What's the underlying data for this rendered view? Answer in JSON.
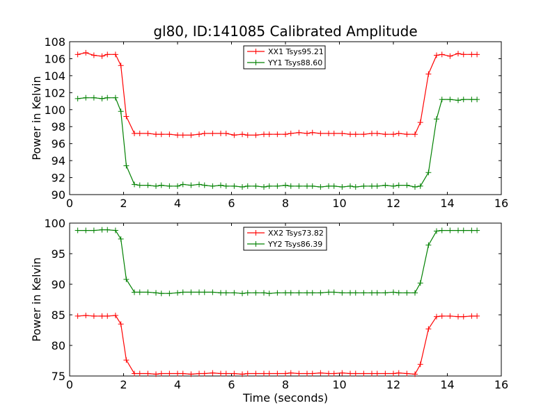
{
  "chart_data": [
    {
      "type": "line",
      "title": "gl80, ID:141085 Calibrated Amplitude",
      "xlabel": "",
      "ylabel": "Power in Kelvin",
      "xlim": [
        0,
        16
      ],
      "ylim": [
        90,
        108
      ],
      "xticks": [
        0,
        2,
        4,
        6,
        8,
        10,
        12,
        14,
        16
      ],
      "yticks": [
        90,
        92,
        94,
        96,
        98,
        100,
        102,
        104,
        106,
        108
      ],
      "legend_position": "top-center",
      "x": [
        0.3,
        0.6,
        0.9,
        1.2,
        1.4,
        1.7,
        1.9,
        2.1,
        2.4,
        2.6,
        2.9,
        3.2,
        3.4,
        3.7,
        4.0,
        4.2,
        4.5,
        4.8,
        5.0,
        5.3,
        5.6,
        5.8,
        6.1,
        6.4,
        6.6,
        6.9,
        7.2,
        7.4,
        7.7,
        8.0,
        8.2,
        8.5,
        8.8,
        9.0,
        9.3,
        9.6,
        9.8,
        10.1,
        10.4,
        10.6,
        10.9,
        11.2,
        11.4,
        11.7,
        12.0,
        12.2,
        12.5,
        12.8,
        13.0,
        13.3,
        13.6,
        13.8,
        14.1,
        14.4,
        14.6,
        14.9,
        15.1
      ],
      "series": [
        {
          "name": "XX1 Tsys95.21",
          "color": "#ff0000",
          "values": [
            106.5,
            106.7,
            106.4,
            106.3,
            106.5,
            106.5,
            105.2,
            99.2,
            97.2,
            97.2,
            97.2,
            97.1,
            97.1,
            97.1,
            97.0,
            97.0,
            97.0,
            97.1,
            97.2,
            97.2,
            97.2,
            97.2,
            97.0,
            97.1,
            97.0,
            97.0,
            97.1,
            97.1,
            97.1,
            97.1,
            97.2,
            97.3,
            97.2,
            97.3,
            97.2,
            97.2,
            97.2,
            97.2,
            97.1,
            97.1,
            97.1,
            97.2,
            97.2,
            97.1,
            97.1,
            97.2,
            97.1,
            97.1,
            98.5,
            104.2,
            106.4,
            106.5,
            106.3,
            106.6,
            106.5,
            106.5,
            106.5
          ]
        },
        {
          "name": "YY1 Tsys88.60",
          "color": "#008000",
          "values": [
            101.3,
            101.4,
            101.4,
            101.3,
            101.4,
            101.4,
            99.8,
            93.4,
            91.2,
            91.1,
            91.1,
            91.0,
            91.1,
            91.0,
            91.0,
            91.2,
            91.1,
            91.2,
            91.1,
            91.0,
            91.1,
            91.0,
            91.0,
            90.9,
            91.0,
            91.0,
            90.9,
            91.0,
            91.0,
            91.1,
            91.0,
            91.0,
            91.0,
            91.0,
            90.9,
            91.0,
            91.0,
            90.9,
            91.0,
            90.9,
            91.0,
            91.0,
            91.0,
            91.1,
            91.0,
            91.1,
            91.1,
            90.9,
            91.0,
            92.6,
            98.9,
            101.2,
            101.2,
            101.1,
            101.2,
            101.2,
            101.2
          ]
        }
      ]
    },
    {
      "type": "line",
      "title": "",
      "xlabel": "Time (seconds)",
      "ylabel": "Power in Kelvin",
      "xlim": [
        0,
        16
      ],
      "ylim": [
        75,
        100
      ],
      "xticks": [
        0,
        2,
        4,
        6,
        8,
        10,
        12,
        14,
        16
      ],
      "yticks": [
        75,
        80,
        85,
        90,
        95,
        100
      ],
      "legend_position": "top-center",
      "x": [
        0.3,
        0.6,
        0.9,
        1.2,
        1.4,
        1.7,
        1.9,
        2.1,
        2.4,
        2.6,
        2.9,
        3.2,
        3.4,
        3.7,
        4.0,
        4.2,
        4.5,
        4.8,
        5.0,
        5.3,
        5.6,
        5.8,
        6.1,
        6.4,
        6.6,
        6.9,
        7.2,
        7.4,
        7.7,
        8.0,
        8.2,
        8.5,
        8.8,
        9.0,
        9.3,
        9.6,
        9.8,
        10.1,
        10.4,
        10.6,
        10.9,
        11.2,
        11.4,
        11.7,
        12.0,
        12.2,
        12.5,
        12.8,
        13.0,
        13.3,
        13.6,
        13.8,
        14.1,
        14.4,
        14.6,
        14.9,
        15.1
      ],
      "series": [
        {
          "name": "XX2 Tsys73.82",
          "color": "#ff0000",
          "values": [
            84.8,
            84.9,
            84.8,
            84.8,
            84.8,
            84.9,
            83.5,
            77.6,
            75.4,
            75.4,
            75.4,
            75.3,
            75.4,
            75.4,
            75.4,
            75.4,
            75.3,
            75.4,
            75.4,
            75.5,
            75.4,
            75.4,
            75.4,
            75.3,
            75.4,
            75.4,
            75.4,
            75.4,
            75.4,
            75.4,
            75.5,
            75.4,
            75.4,
            75.4,
            75.5,
            75.4,
            75.4,
            75.5,
            75.4,
            75.4,
            75.4,
            75.4,
            75.4,
            75.4,
            75.4,
            75.5,
            75.4,
            75.3,
            76.9,
            82.7,
            84.7,
            84.8,
            84.8,
            84.7,
            84.7,
            84.8,
            84.8
          ]
        },
        {
          "name": "YY2 Tsys86.39",
          "color": "#008000",
          "values": [
            98.8,
            98.8,
            98.8,
            98.9,
            98.9,
            98.8,
            97.4,
            90.8,
            88.7,
            88.7,
            88.7,
            88.6,
            88.5,
            88.5,
            88.6,
            88.7,
            88.7,
            88.7,
            88.7,
            88.7,
            88.6,
            88.6,
            88.6,
            88.5,
            88.6,
            88.6,
            88.6,
            88.5,
            88.6,
            88.6,
            88.6,
            88.6,
            88.6,
            88.6,
            88.6,
            88.7,
            88.7,
            88.6,
            88.6,
            88.6,
            88.6,
            88.6,
            88.6,
            88.6,
            88.7,
            88.6,
            88.6,
            88.6,
            90.2,
            96.4,
            98.7,
            98.8,
            98.8,
            98.8,
            98.8,
            98.8,
            98.8
          ]
        }
      ]
    }
  ]
}
